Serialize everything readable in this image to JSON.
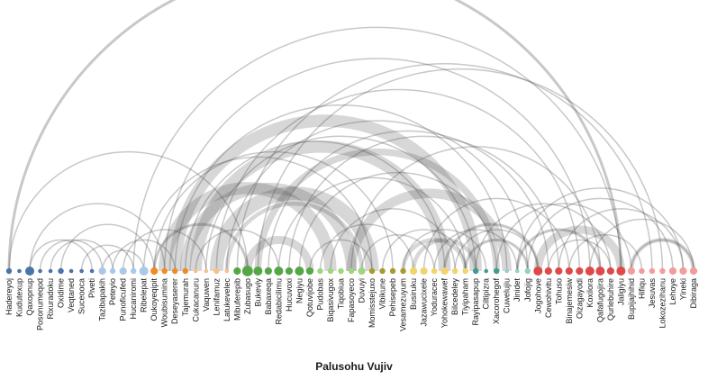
{
  "title": "Palusohu Vujiv",
  "node_sets": [
    {
      "group": 0,
      "color": "#4a74a8",
      "labels": [
        "Hadereyoj",
        "Kudutexup",
        "Qaxopnup",
        "Posonumeqod",
        "Rixuradoku",
        "Oxidime",
        "Veqtaned",
        "Suceooca",
        "Piveti"
      ]
    },
    {
      "group": 1,
      "color": "#a9c8ea",
      "labels": [
        "Tazibapakih",
        "Peteyio",
        "Punoficufed",
        "Hucaniromi",
        "Ribelepat"
      ]
    },
    {
      "group": 2,
      "color": "#f08a22",
      "labels": [
        "Oukoyeqipit",
        "Woubisumina",
        "Deseyaserer",
        "Tajemurah"
      ]
    },
    {
      "group": 3,
      "color": "#f6c089",
      "labels": [
        "Cukacanuru",
        "Vaquwen",
        "Lenifamuz",
        "Latukevelec"
      ]
    },
    {
      "group": 4,
      "color": "#55a647",
      "labels": [
        "Mibuferepib",
        "Zubasugo",
        "Bukeviy",
        "Babaxeqa",
        "Redabicilimu",
        "Hucuvoxi",
        "Negiyu",
        "Qotuvijobe"
      ]
    },
    {
      "group": 5,
      "color": "#9fd57f",
      "labels": [
        "Pudobas",
        "Biqasivugox",
        "Tiqobiua",
        "Fapasoyeco",
        "Duvuyi"
      ]
    },
    {
      "group": 6,
      "color": "#a89a2e",
      "labels": [
        "Momisstejuxo",
        "Vibikune",
        "Pehisepeb",
        "Vesamezuyum"
      ]
    },
    {
      "group": 7,
      "color": "#f3d36b",
      "labels": [
        "Busiruku",
        "Jazawucixele",
        "Yoduracec",
        "Yohokewawef",
        "Bilcedeley",
        "Tiyipaham"
      ]
    },
    {
      "group": 8,
      "color": "#3f9c8e",
      "labels": [
        "Rayipasapup",
        "Ciltipizra",
        "Xacorohegof"
      ]
    },
    {
      "group": 9,
      "color": "#98cfc3",
      "labels": [
        "Cuwelujiu",
        "Jinidet",
        "Jofojig"
      ]
    },
    {
      "group": 10,
      "color": "#dd4a49",
      "labels": [
        "Jogohove",
        "Cewohivitu",
        "Tohuso",
        "Binajemesiw",
        "Oizagayodi",
        "Koxilora",
        "Qafafugojira",
        "Qurlebuhire",
        "Jaligiyu"
      ]
    },
    {
      "group": 11,
      "color": "#f39c9b",
      "labels": [
        "Bupijajhihid",
        "Hifiqu",
        "Jesuvas",
        "Lokozezihanu",
        "Lehoye",
        "Yineki",
        "Dibiraga"
      ]
    }
  ],
  "node_weights": [
    2,
    1,
    4,
    1,
    1,
    2,
    1,
    1,
    1,
    3,
    2,
    3,
    2,
    4,
    3,
    2,
    2,
    2,
    1,
    1,
    2,
    1,
    3,
    5,
    4,
    3,
    4,
    3,
    4,
    3,
    2,
    2,
    2,
    2,
    3,
    2,
    2,
    2,
    2,
    3,
    3,
    2,
    3,
    2,
    2,
    2,
    1,
    2,
    1,
    1,
    2,
    4,
    3,
    3,
    3,
    3,
    4,
    4,
    3,
    4,
    3,
    2,
    2,
    2,
    3,
    3,
    3
  ],
  "links": [
    [
      0,
      59,
      2
    ],
    [
      0,
      23,
      1
    ],
    [
      2,
      8,
      1
    ],
    [
      2,
      15,
      1
    ],
    [
      4,
      10,
      1
    ],
    [
      5,
      14,
      1
    ],
    [
      7,
      12,
      1
    ],
    [
      3,
      9,
      1
    ],
    [
      9,
      13,
      1
    ],
    [
      10,
      16,
      1
    ],
    [
      11,
      19,
      1
    ],
    [
      12,
      59,
      1
    ],
    [
      13,
      35,
      1
    ],
    [
      14,
      37,
      1
    ],
    [
      15,
      56,
      1
    ],
    [
      16,
      48,
      1
    ],
    [
      17,
      42,
      1
    ],
    [
      18,
      26,
      1
    ],
    [
      19,
      45,
      1
    ],
    [
      20,
      55,
      1
    ],
    [
      21,
      50,
      1
    ],
    [
      22,
      62,
      1
    ],
    [
      24,
      63,
      1
    ],
    [
      25,
      52,
      1
    ],
    [
      26,
      44,
      1
    ],
    [
      27,
      53,
      1
    ],
    [
      28,
      47,
      1
    ],
    [
      29,
      35,
      1
    ],
    [
      30,
      39,
      1
    ],
    [
      31,
      43,
      1
    ],
    [
      33,
      57,
      1
    ],
    [
      34,
      41,
      1
    ],
    [
      36,
      44,
      1
    ],
    [
      38,
      46,
      1
    ],
    [
      40,
      54,
      1
    ],
    [
      41,
      49,
      1
    ],
    [
      43,
      51,
      1
    ],
    [
      45,
      58,
      1
    ],
    [
      47,
      60,
      1
    ],
    [
      49,
      65,
      1
    ],
    [
      50,
      64,
      1
    ],
    [
      52,
      58,
      1
    ],
    [
      54,
      61,
      1
    ],
    [
      56,
      66,
      1
    ],
    [
      60,
      66,
      1
    ],
    [
      16,
      45,
      9
    ],
    [
      18,
      42,
      9
    ],
    [
      20,
      35,
      10
    ],
    [
      17,
      33,
      8
    ],
    [
      15,
      31,
      9
    ],
    [
      14,
      23,
      2
    ],
    [
      24,
      47,
      5
    ],
    [
      33,
      48,
      7
    ],
    [
      38,
      44,
      3
    ],
    [
      21,
      34,
      3
    ],
    [
      23,
      29,
      6
    ],
    [
      39,
      45,
      3
    ],
    [
      42,
      51,
      2
    ],
    [
      51,
      59,
      6
    ],
    [
      60,
      66,
      3
    ],
    [
      49,
      57,
      2
    ],
    [
      44,
      50,
      2
    ],
    [
      53,
      65,
      1
    ]
  ]
}
